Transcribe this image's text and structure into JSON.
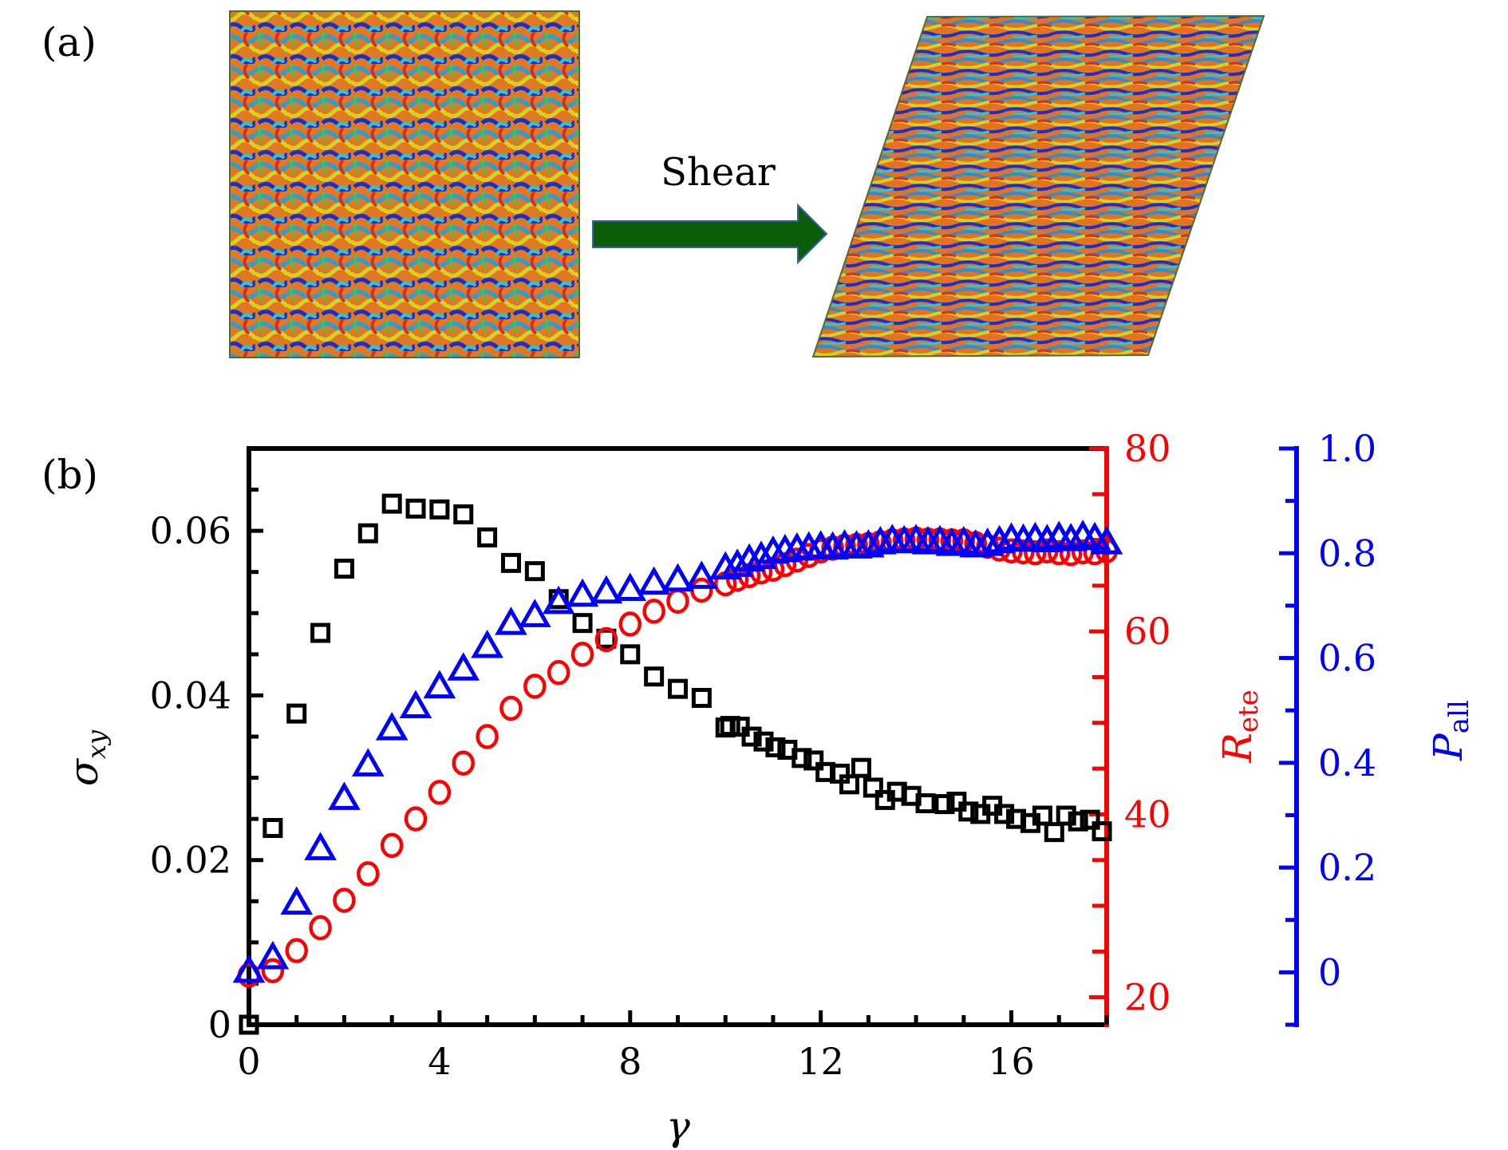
{
  "panel_a": {
    "label": "(a)",
    "arrow_label": "Shear",
    "arrow_color": "#0b5d0b",
    "before_image": "unsheared polymer configuration (colored chains)",
    "after_image": "sheared polymer configuration (colored chains)"
  },
  "panel_b": {
    "label": "(b)"
  },
  "chart_data": {
    "type": "scatter",
    "title": "",
    "xlabel": "γ",
    "xlim": [
      0,
      18
    ],
    "xticks": [
      0,
      4,
      8,
      12,
      16
    ],
    "xtick_labels": [
      "0",
      "4",
      "8",
      "12",
      "16"
    ],
    "axes": {
      "left": {
        "label_main": "σ",
        "label_sub": "xy",
        "color": "#000000",
        "ylim": [
          0,
          0.07
        ],
        "ticks": [
          0,
          0.02,
          0.04,
          0.06
        ],
        "tick_labels": [
          "0",
          "0.02",
          "0.04",
          "0.06"
        ]
      },
      "right1": {
        "label_main": "R",
        "label_sub": "ete",
        "color": "#ff0000",
        "ylim": [
          17,
          80
        ],
        "ticks": [
          20,
          40,
          60,
          80
        ],
        "tick_labels": [
          "20",
          "40",
          "60",
          "80"
        ]
      },
      "right2": {
        "label_main": "P",
        "label_sub": "all",
        "color": "#0000ff",
        "ylim": [
          -0.1,
          1.0
        ],
        "ticks": [
          0,
          0.2,
          0.4,
          0.6,
          0.8,
          1.0
        ],
        "tick_labels": [
          "0",
          "0.2",
          "0.4",
          "0.6",
          "0.8",
          "1.0"
        ]
      }
    },
    "grid": false,
    "legend": "none",
    "series": [
      {
        "name": "σxy",
        "axis": "left",
        "marker": "square",
        "color": "#000000",
        "x": [
          0,
          0.5,
          1,
          1.5,
          2,
          2.5,
          3,
          3.5,
          4,
          4.5,
          5,
          5.5,
          6,
          6.5,
          7,
          7.5,
          8,
          8.5,
          9,
          9.5,
          10,
          10.1,
          10.3,
          10.55,
          10.8,
          11.05,
          11.3,
          11.6,
          11.85,
          12.1,
          12.4,
          12.6,
          12.85,
          13.1,
          13.35,
          13.6,
          13.9,
          14.2,
          14.6,
          14.85,
          15.1,
          15.35,
          15.6,
          15.85,
          16.1,
          16.4,
          16.65,
          16.9,
          17.15,
          17.4,
          17.65,
          17.9
        ],
        "y": [
          0.0,
          0.0239,
          0.0378,
          0.0476,
          0.0554,
          0.0597,
          0.0633,
          0.0627,
          0.0626,
          0.062,
          0.0592,
          0.0561,
          0.0551,
          0.0517,
          0.0488,
          0.0469,
          0.045,
          0.0423,
          0.0408,
          0.0397,
          0.0361,
          0.0363,
          0.0362,
          0.035,
          0.0344,
          0.0337,
          0.0334,
          0.0324,
          0.0321,
          0.0307,
          0.0305,
          0.0292,
          0.0312,
          0.0288,
          0.0273,
          0.0283,
          0.0278,
          0.0269,
          0.0268,
          0.0271,
          0.0259,
          0.0256,
          0.0266,
          0.0256,
          0.025,
          0.0245,
          0.0254,
          0.0234,
          0.0254,
          0.0247,
          0.0249,
          0.0235
        ]
      },
      {
        "name": "Rete",
        "axis": "right1",
        "marker": "circle",
        "color": "#ff0000",
        "x": [
          0,
          0.5,
          1,
          1.5,
          2,
          2.5,
          3,
          3.5,
          4,
          4.5,
          5,
          5.5,
          6,
          6.5,
          7,
          7.5,
          8,
          8.5,
          9,
          9.5,
          10,
          10.25,
          10.5,
          10.75,
          11,
          11.25,
          11.5,
          11.75,
          12,
          12.25,
          12.5,
          12.75,
          13,
          13.25,
          13.5,
          13.75,
          14,
          14.25,
          14.5,
          14.75,
          15,
          15.25,
          15.5,
          15.75,
          16,
          16.25,
          16.5,
          16.75,
          17,
          17.25,
          17.5,
          17.75,
          18
        ],
        "y": [
          22.4,
          22.9,
          25.1,
          27.6,
          30.6,
          33.5,
          36.6,
          39.5,
          42.4,
          45.6,
          48.5,
          51.6,
          54.0,
          55.5,
          57.5,
          59.1,
          60.8,
          62.2,
          63.3,
          64.5,
          65.2,
          65.7,
          66.1,
          66.5,
          66.8,
          67.3,
          67.8,
          68.3,
          68.8,
          69.1,
          69.3,
          69.4,
          69.5,
          69.7,
          69.9,
          70.0,
          70.1,
          70.0,
          70.0,
          69.9,
          69.9,
          69.6,
          69.3,
          69.0,
          68.8,
          68.7,
          68.6,
          68.8,
          68.6,
          68.5,
          68.7,
          68.6,
          68.8
        ]
      },
      {
        "name": "Pall",
        "axis": "right2",
        "marker": "triangle",
        "color": "#0000ff",
        "x": [
          0,
          0.5,
          1,
          1.5,
          2,
          2.5,
          3,
          3.5,
          4,
          4.5,
          5,
          5.5,
          6,
          6.5,
          7,
          7.5,
          8,
          8.5,
          9,
          9.5,
          10,
          10.25,
          10.5,
          10.75,
          11,
          11.25,
          11.5,
          11.75,
          12,
          12.25,
          12.5,
          12.75,
          13,
          13.25,
          13.5,
          13.75,
          14,
          14.25,
          14.5,
          14.75,
          15,
          15.25,
          15.5,
          15.75,
          16,
          16.25,
          16.5,
          16.75,
          17,
          17.25,
          17.5,
          17.75,
          18
        ],
        "y": [
          0.0,
          0.026,
          0.13,
          0.234,
          0.33,
          0.394,
          0.463,
          0.505,
          0.543,
          0.577,
          0.62,
          0.664,
          0.679,
          0.704,
          0.718,
          0.724,
          0.729,
          0.741,
          0.747,
          0.752,
          0.77,
          0.775,
          0.785,
          0.79,
          0.8,
          0.803,
          0.806,
          0.808,
          0.81,
          0.808,
          0.812,
          0.81,
          0.812,
          0.818,
          0.822,
          0.82,
          0.822,
          0.818,
          0.82,
          0.815,
          0.818,
          0.812,
          0.815,
          0.82,
          0.825,
          0.823,
          0.826,
          0.822,
          0.828,
          0.824,
          0.83,
          0.826,
          0.818
        ]
      }
    ]
  }
}
